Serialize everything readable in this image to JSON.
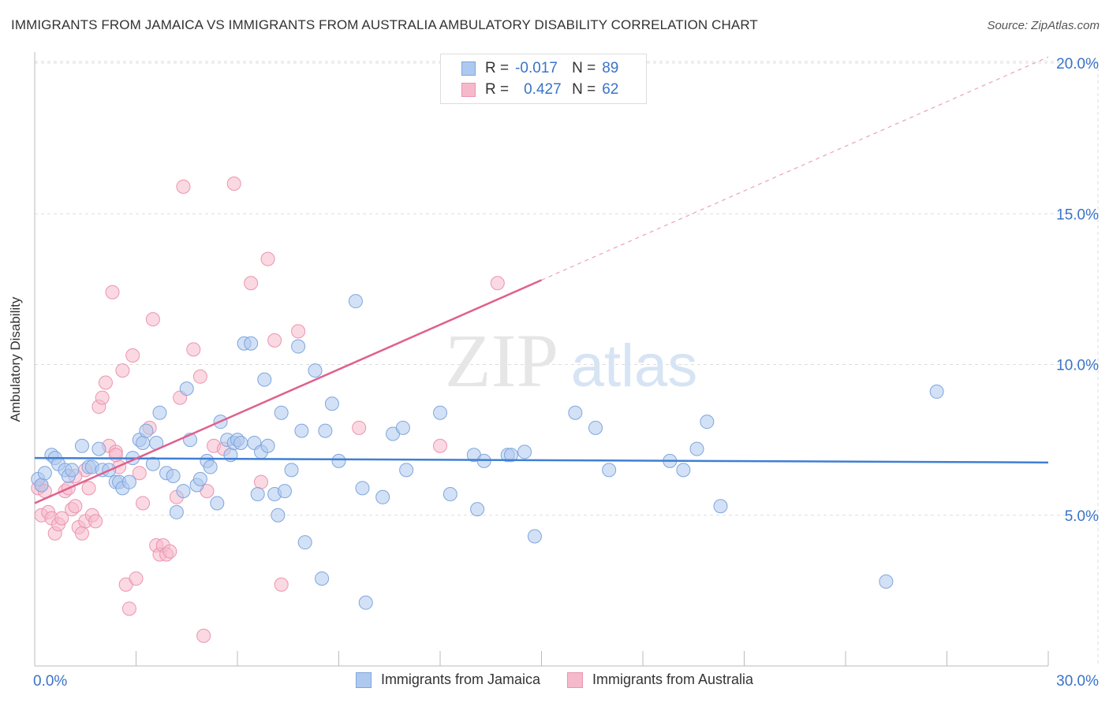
{
  "header": {
    "title": "IMMIGRANTS FROM JAMAICA VS IMMIGRANTS FROM AUSTRALIA AMBULATORY DISABILITY CORRELATION CHART",
    "source": "Source: ZipAtlas.com"
  },
  "watermark": {
    "part1": "ZIP",
    "part2": "atlas"
  },
  "legend": {
    "rows": [
      {
        "r_label": "R =",
        "r_value": "-0.017",
        "n_label": "N =",
        "n_value": "89"
      },
      {
        "r_label": "R =",
        "r_value": "0.427",
        "n_label": "N =",
        "n_value": "62"
      }
    ]
  },
  "colors": {
    "jamaica_fill": "#aec9ef",
    "jamaica_stroke": "#7ea6de",
    "jamaica_line": "#3f7fd4",
    "australia_fill": "#f6b9cc",
    "australia_stroke": "#ec94b0",
    "australia_line": "#e0608d",
    "axis_text": "#3a73c8",
    "grid": "#dddddd"
  },
  "chart_data": {
    "type": "scatter",
    "title": "IMMIGRANTS FROM JAMAICA VS IMMIGRANTS FROM AUSTRALIA AMBULATORY DISABILITY CORRELATION CHART",
    "xlabel": "",
    "ylabel": "Ambulatory Disability",
    "xlim": [
      0,
      30
    ],
    "ylim": [
      0,
      20.5
    ],
    "x_tick_labels": [
      {
        "value": 0,
        "label": "0.0%"
      },
      {
        "value": 30,
        "label": "30.0%"
      }
    ],
    "y_tick_labels": [
      {
        "value": 5,
        "label": "5.0%"
      },
      {
        "value": 10,
        "label": "10.0%"
      },
      {
        "value": 15,
        "label": "15.0%"
      },
      {
        "value": 20,
        "label": "20.0%"
      }
    ],
    "grid": true,
    "legend_position": "bottom",
    "series": [
      {
        "name": "Immigrants from Jamaica",
        "r": -0.017,
        "n": 89,
        "trend": {
          "x0": 0,
          "y0": 6.9,
          "x1": 30,
          "y1": 6.75,
          "dashed_from": null
        },
        "points": [
          [
            0.1,
            6.2
          ],
          [
            0.2,
            6.0
          ],
          [
            0.3,
            6.4
          ],
          [
            0.5,
            7.0
          ],
          [
            0.6,
            6.9
          ],
          [
            0.7,
            6.7
          ],
          [
            0.9,
            6.5
          ],
          [
            1.0,
            6.3
          ],
          [
            1.1,
            6.5
          ],
          [
            1.4,
            7.3
          ],
          [
            1.6,
            6.6
          ],
          [
            1.7,
            6.6
          ],
          [
            1.9,
            7.2
          ],
          [
            2.0,
            6.5
          ],
          [
            2.2,
            6.5
          ],
          [
            2.4,
            6.1
          ],
          [
            2.5,
            6.1
          ],
          [
            2.6,
            5.9
          ],
          [
            2.8,
            6.1
          ],
          [
            2.9,
            6.9
          ],
          [
            3.1,
            7.5
          ],
          [
            3.2,
            7.4
          ],
          [
            3.3,
            7.8
          ],
          [
            3.5,
            6.7
          ],
          [
            3.6,
            7.4
          ],
          [
            3.7,
            8.4
          ],
          [
            3.9,
            6.4
          ],
          [
            4.1,
            6.3
          ],
          [
            4.2,
            5.1
          ],
          [
            4.4,
            5.8
          ],
          [
            4.5,
            9.2
          ],
          [
            4.6,
            7.5
          ],
          [
            4.8,
            6.0
          ],
          [
            4.9,
            6.2
          ],
          [
            5.1,
            6.8
          ],
          [
            5.2,
            6.6
          ],
          [
            5.4,
            5.4
          ],
          [
            5.5,
            8.1
          ],
          [
            5.7,
            7.5
          ],
          [
            5.8,
            7.0
          ],
          [
            5.9,
            7.4
          ],
          [
            6.0,
            7.5
          ],
          [
            6.1,
            7.4
          ],
          [
            6.2,
            10.7
          ],
          [
            6.4,
            10.7
          ],
          [
            6.5,
            7.4
          ],
          [
            6.6,
            5.7
          ],
          [
            6.7,
            7.1
          ],
          [
            6.8,
            9.5
          ],
          [
            6.9,
            7.3
          ],
          [
            7.1,
            5.7
          ],
          [
            7.2,
            5.0
          ],
          [
            7.3,
            8.4
          ],
          [
            7.4,
            5.8
          ],
          [
            7.6,
            6.5
          ],
          [
            7.8,
            10.6
          ],
          [
            7.9,
            7.8
          ],
          [
            8.0,
            4.1
          ],
          [
            8.3,
            9.8
          ],
          [
            8.5,
            2.9
          ],
          [
            8.6,
            7.8
          ],
          [
            8.8,
            8.7
          ],
          [
            9.0,
            6.8
          ],
          [
            9.5,
            12.1
          ],
          [
            9.7,
            5.9
          ],
          [
            9.8,
            2.1
          ],
          [
            10.3,
            5.6
          ],
          [
            10.6,
            7.7
          ],
          [
            10.9,
            7.9
          ],
          [
            11.0,
            6.5
          ],
          [
            12.0,
            8.4
          ],
          [
            12.3,
            5.7
          ],
          [
            13.0,
            7.0
          ],
          [
            13.1,
            5.2
          ],
          [
            13.3,
            6.8
          ],
          [
            14.0,
            7.0
          ],
          [
            14.1,
            7.0
          ],
          [
            14.5,
            7.1
          ],
          [
            14.8,
            4.3
          ],
          [
            16.0,
            8.4
          ],
          [
            16.6,
            7.9
          ],
          [
            17.0,
            6.5
          ],
          [
            18.8,
            6.8
          ],
          [
            19.2,
            6.5
          ],
          [
            19.6,
            7.2
          ],
          [
            19.9,
            8.1
          ],
          [
            20.3,
            5.3
          ],
          [
            25.2,
            2.8
          ],
          [
            26.7,
            9.1
          ]
        ]
      },
      {
        "name": "Immigrants from Australia",
        "r": 0.427,
        "n": 62,
        "trend": {
          "x0": 0,
          "y0": 5.4,
          "x1": 30,
          "y1": 20.2,
          "dashed_from": 15.0
        },
        "points": [
          [
            0.1,
            5.9
          ],
          [
            0.2,
            6.0
          ],
          [
            0.3,
            5.8
          ],
          [
            0.2,
            5.0
          ],
          [
            0.4,
            5.1
          ],
          [
            0.5,
            4.9
          ],
          [
            0.6,
            4.4
          ],
          [
            0.7,
            4.7
          ],
          [
            0.8,
            4.9
          ],
          [
            0.9,
            5.8
          ],
          [
            1.0,
            5.9
          ],
          [
            1.1,
            5.2
          ],
          [
            1.2,
            5.3
          ],
          [
            1.3,
            4.6
          ],
          [
            1.4,
            4.4
          ],
          [
            1.5,
            4.8
          ],
          [
            1.6,
            5.9
          ],
          [
            1.7,
            5.0
          ],
          [
            1.8,
            4.8
          ],
          [
            1.9,
            8.6
          ],
          [
            2.0,
            8.9
          ],
          [
            2.1,
            9.4
          ],
          [
            2.2,
            7.3
          ],
          [
            2.3,
            12.4
          ],
          [
            2.4,
            7.1
          ],
          [
            2.5,
            6.6
          ],
          [
            2.6,
            9.8
          ],
          [
            2.7,
            2.7
          ],
          [
            2.8,
            1.9
          ],
          [
            2.9,
            10.3
          ],
          [
            3.0,
            2.9
          ],
          [
            3.2,
            5.4
          ],
          [
            3.4,
            7.9
          ],
          [
            3.5,
            11.5
          ],
          [
            3.6,
            4.0
          ],
          [
            3.7,
            3.7
          ],
          [
            3.8,
            4.0
          ],
          [
            3.9,
            3.7
          ],
          [
            4.0,
            3.8
          ],
          [
            4.2,
            5.6
          ],
          [
            4.3,
            8.9
          ],
          [
            4.4,
            15.9
          ],
          [
            4.7,
            10.5
          ],
          [
            4.9,
            9.6
          ],
          [
            5.0,
            1.0
          ],
          [
            5.1,
            5.8
          ],
          [
            5.3,
            7.3
          ],
          [
            5.6,
            7.2
          ],
          [
            5.9,
            16.0
          ],
          [
            6.4,
            12.7
          ],
          [
            6.7,
            6.1
          ],
          [
            6.9,
            13.5
          ],
          [
            7.1,
            10.8
          ],
          [
            7.3,
            2.7
          ],
          [
            7.8,
            11.1
          ],
          [
            9.6,
            7.9
          ],
          [
            12.0,
            7.3
          ],
          [
            13.7,
            12.7
          ],
          [
            1.5,
            6.5
          ],
          [
            2.4,
            7.0
          ],
          [
            3.1,
            6.4
          ],
          [
            1.2,
            6.3
          ]
        ]
      }
    ]
  }
}
